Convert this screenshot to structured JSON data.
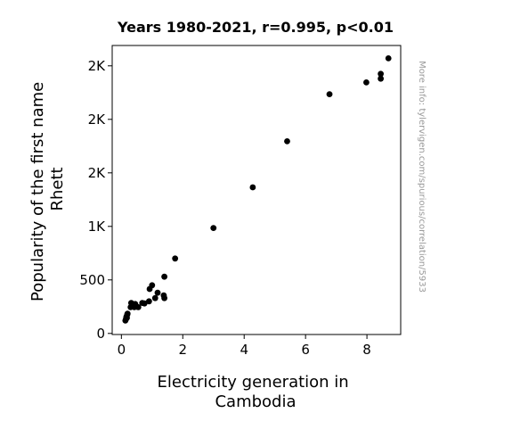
{
  "chart_data": {
    "type": "scatter",
    "title": "Years 1980-2021, r=0.995, p<0.01",
    "xlabel_lines": [
      "Electricity generation in",
      "Cambodia"
    ],
    "ylabel_lines": [
      "Popularity of the first name",
      "Rhett"
    ],
    "watermark": "More info: tylervigen.com/spurious/correlation/5933",
    "xlim": [
      -0.3,
      9.1
    ],
    "ylim": [
      -10,
      2690
    ],
    "x_ticks": [
      {
        "value": 0,
        "label": "0"
      },
      {
        "value": 2,
        "label": "2"
      },
      {
        "value": 4,
        "label": "4"
      },
      {
        "value": 6,
        "label": "6"
      },
      {
        "value": 8,
        "label": "8"
      }
    ],
    "y_ticks": [
      {
        "value": 0,
        "label": "0"
      },
      {
        "value": 500,
        "label": "500"
      },
      {
        "value": 1000,
        "label": "1K"
      },
      {
        "value": 1500,
        "label": "2K"
      },
      {
        "value": 2000,
        "label": "2K"
      },
      {
        "value": 2500,
        "label": "2K"
      }
    ],
    "marker_color": "#000000",
    "points": [
      {
        "x": 0.13,
        "y": 120
      },
      {
        "x": 0.15,
        "y": 135
      },
      {
        "x": 0.16,
        "y": 150
      },
      {
        "x": 0.17,
        "y": 160
      },
      {
        "x": 0.18,
        "y": 145
      },
      {
        "x": 0.19,
        "y": 175
      },
      {
        "x": 0.2,
        "y": 185
      },
      {
        "x": 0.3,
        "y": 245
      },
      {
        "x": 0.32,
        "y": 285
      },
      {
        "x": 0.38,
        "y": 265
      },
      {
        "x": 0.42,
        "y": 245
      },
      {
        "x": 0.45,
        "y": 275
      },
      {
        "x": 0.5,
        "y": 250
      },
      {
        "x": 0.55,
        "y": 245
      },
      {
        "x": 0.68,
        "y": 285
      },
      {
        "x": 0.75,
        "y": 280
      },
      {
        "x": 0.9,
        "y": 300
      },
      {
        "x": 0.92,
        "y": 415
      },
      {
        "x": 1.0,
        "y": 450
      },
      {
        "x": 1.1,
        "y": 330
      },
      {
        "x": 1.18,
        "y": 380
      },
      {
        "x": 1.38,
        "y": 355
      },
      {
        "x": 1.4,
        "y": 330
      },
      {
        "x": 1.4,
        "y": 530
      },
      {
        "x": 1.75,
        "y": 700
      },
      {
        "x": 3.0,
        "y": 985
      },
      {
        "x": 4.28,
        "y": 1365
      },
      {
        "x": 5.4,
        "y": 1795
      },
      {
        "x": 6.78,
        "y": 2235
      },
      {
        "x": 7.98,
        "y": 2345
      },
      {
        "x": 8.45,
        "y": 2380
      },
      {
        "x": 8.45,
        "y": 2425
      },
      {
        "x": 8.7,
        "y": 2570
      }
    ]
  }
}
